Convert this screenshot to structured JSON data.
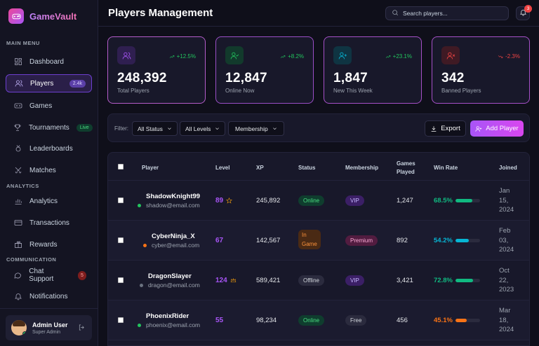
{
  "app": {
    "name": "GameVault"
  },
  "sidebar": {
    "sections": {
      "main": "MAIN MENU",
      "analytics": "ANALYTICS",
      "communication": "COMMUNICATION"
    },
    "items": [
      {
        "label": "Dashboard",
        "icon": "dashboard-icon"
      },
      {
        "label": "Players",
        "icon": "users-icon",
        "count": "2.4k",
        "active": true
      },
      {
        "label": "Games",
        "icon": "gamepad-icon"
      },
      {
        "label": "Tournaments",
        "icon": "trophy-icon",
        "tag": "Live"
      },
      {
        "label": "Leaderboards",
        "icon": "medal-icon"
      },
      {
        "label": "Matches",
        "icon": "swords-icon"
      },
      {
        "label": "Analytics",
        "icon": "chart-icon"
      },
      {
        "label": "Transactions",
        "icon": "credit-card-icon"
      },
      {
        "label": "Rewards",
        "icon": "gift-icon"
      },
      {
        "label": "Chat Support",
        "icon": "chat-icon",
        "badge": "5"
      },
      {
        "label": "Notifications",
        "icon": "bell-icon"
      }
    ],
    "user": {
      "name": "Admin User",
      "role": "Super Admin"
    }
  },
  "header": {
    "title": "Players Management",
    "search_placeholder": "Search players...",
    "notification_count": "3"
  },
  "stats": [
    {
      "value": "248,392",
      "label": "Total Players",
      "change": "+12.5%",
      "trend": "up",
      "color": "#a855f7"
    },
    {
      "value": "12,847",
      "label": "Online Now",
      "change": "+8.2%",
      "trend": "up",
      "color": "#22c55e"
    },
    {
      "value": "1,847",
      "label": "New This Week",
      "change": "+23.1%",
      "trend": "up",
      "color": "#06b6d4"
    },
    {
      "value": "342",
      "label": "Banned Players",
      "change": "-2.3%",
      "trend": "down",
      "color": "#ef4444"
    }
  ],
  "filters": {
    "label": "Filter:",
    "status": "All Status",
    "levels": "All Levels",
    "membership": "Membership",
    "export_label": "Export",
    "add_label": "Add Player"
  },
  "table": {
    "headers": {
      "player": "Player",
      "level": "Level",
      "xp": "XP",
      "status": "Status",
      "membership": "Membership",
      "games_1": "Games",
      "games_2": "Played",
      "winrate": "Win Rate",
      "joined": "Joined"
    },
    "rows": [
      {
        "name": "ShadowKnight99",
        "email": "shadow@email.com",
        "dot": "#22c55e",
        "level": "89",
        "level_icon": "star-icon",
        "xp": "245,892",
        "status": "Online",
        "status_class": "badge-online",
        "membership": "VIP",
        "membership_class": "badge-vip",
        "games": "1,247",
        "winrate": "68.5%",
        "winrate_value": 68.5,
        "winrate_color": "#10b981",
        "joined_1": "Jan",
        "joined_2": "15,",
        "joined_3": "2024"
      },
      {
        "name": "CyberNinja_X",
        "email": "cyber@email.com",
        "dot": "#f97316",
        "level": "67",
        "level_icon": "",
        "xp": "142,567",
        "status_1": "In",
        "status_2": "Game",
        "status_class": "badge-ingame",
        "membership": "Premium",
        "membership_class": "badge-premium",
        "games": "892",
        "winrate": "54.2%",
        "winrate_value": 54.2,
        "winrate_color": "#06b6d4",
        "joined_1": "Feb",
        "joined_2": "03,",
        "joined_3": "2024"
      },
      {
        "name": "DragonSlayer",
        "email": "dragon@email.com",
        "dot": "#6b7280",
        "level": "124",
        "level_icon": "crown-icon",
        "xp": "589,421",
        "status": "Offline",
        "status_class": "badge-offline",
        "membership": "VIP",
        "membership_class": "badge-vip",
        "games": "3,421",
        "winrate": "72.8%",
        "winrate_value": 72.8,
        "winrate_color": "#10b981",
        "joined_1": "Oct",
        "joined_2": "22,",
        "joined_3": "2023"
      },
      {
        "name": "PhoenixRider",
        "email": "phoenix@email.com",
        "dot": "#22c55e",
        "level": "55",
        "level_icon": "",
        "xp": "98,234",
        "status": "Online",
        "status_class": "badge-online",
        "membership": "Free",
        "membership_class": "badge-free",
        "games": "456",
        "winrate": "45.1%",
        "winrate_value": 45.1,
        "winrate_color": "#f97316",
        "joined_1": "Mar",
        "joined_2": "18,",
        "joined_3": "2024"
      }
    ]
  }
}
